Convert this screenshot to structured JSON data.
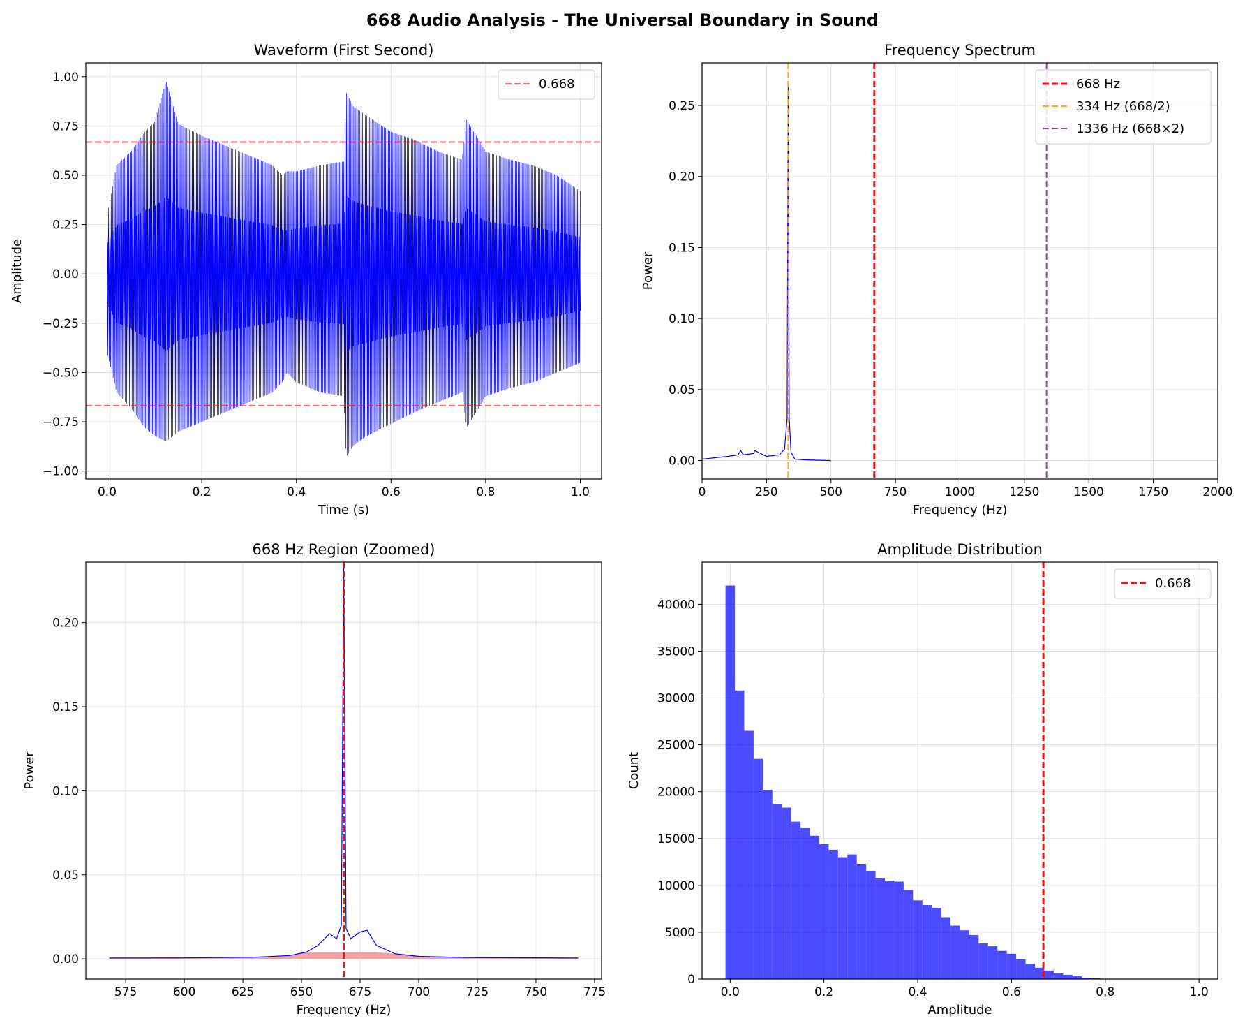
{
  "suptitle": "668 Audio Analysis - The Universal Boundary in Sound",
  "colors": {
    "signal": "#0000ff",
    "red": "#ff0000",
    "orange": "#ffa500",
    "purple": "#9932aa",
    "fill": "#f4a3a3",
    "grid": "#e0e0e0"
  },
  "chart_data": [
    {
      "type": "line",
      "title": "Waveform (First Second)",
      "xlabel": "Time (s)",
      "ylabel": "Amplitude",
      "xlim": [
        -0.045,
        1.045
      ],
      "ylim": [
        -1.04,
        1.07
      ],
      "xticks": [
        0.0,
        0.2,
        0.4,
        0.6,
        0.8,
        1.0
      ],
      "xtick_labels": [
        "0.0",
        "0.2",
        "0.4",
        "0.6",
        "0.8",
        "1.0"
      ],
      "yticks": [
        -1.0,
        -0.75,
        -0.5,
        -0.25,
        0.0,
        0.25,
        0.5,
        0.75,
        1.0
      ],
      "ytick_labels": [
        "−1.00",
        "−0.75",
        "−0.50",
        "−0.25",
        "0.00",
        "0.25",
        "0.50",
        "0.75",
        "1.00"
      ],
      "grid": true,
      "legend": {
        "placement": "top-right",
        "entries": [
          "0.668"
        ]
      },
      "series": [
        {
          "style": "oscillating waveform",
          "envelope_t": [
            0.0,
            0.02,
            0.05,
            0.08,
            0.1,
            0.125,
            0.15,
            0.2,
            0.25,
            0.3,
            0.35,
            0.37,
            0.38,
            0.4,
            0.45,
            0.5,
            0.505,
            0.52,
            0.55,
            0.6,
            0.65,
            0.7,
            0.75,
            0.76,
            0.8,
            0.85,
            0.9,
            0.95,
            1.0
          ],
          "envelope_top": [
            0.3,
            0.55,
            0.62,
            0.72,
            0.77,
            0.98,
            0.76,
            0.7,
            0.65,
            0.6,
            0.55,
            0.5,
            0.52,
            0.52,
            0.55,
            0.57,
            0.92,
            0.85,
            0.8,
            0.72,
            0.68,
            0.62,
            0.58,
            0.78,
            0.62,
            0.58,
            0.55,
            0.5,
            0.42
          ],
          "envelope_bottom": [
            -0.4,
            -0.6,
            -0.68,
            -0.78,
            -0.82,
            -0.85,
            -0.8,
            -0.75,
            -0.7,
            -0.65,
            -0.6,
            -0.55,
            -0.5,
            -0.55,
            -0.6,
            -0.62,
            -0.93,
            -0.87,
            -0.82,
            -0.76,
            -0.7,
            -0.65,
            -0.6,
            -0.78,
            -0.62,
            -0.58,
            -0.55,
            -0.5,
            -0.45
          ]
        }
      ],
      "reference_lines": [
        {
          "axis": "y",
          "value": 0.668,
          "color": "red",
          "style": "dashed",
          "label": "0.668"
        },
        {
          "axis": "y",
          "value": -0.668,
          "color": "red",
          "style": "dashed"
        }
      ]
    },
    {
      "type": "line",
      "title": "Frequency Spectrum",
      "xlabel": "Frequency (Hz)",
      "ylabel": "Power",
      "xlim": [
        0,
        2000
      ],
      "ylim": [
        -0.013,
        0.28
      ],
      "xticks": [
        0,
        250,
        500,
        750,
        1000,
        1250,
        1500,
        1750,
        2000
      ],
      "xtick_labels": [
        "0",
        "250",
        "500",
        "750",
        "1000",
        "1250",
        "1500",
        "1750",
        "2000"
      ],
      "yticks": [
        0.0,
        0.05,
        0.1,
        0.15,
        0.2,
        0.25
      ],
      "ytick_labels": [
        "0.00",
        "0.05",
        "0.10",
        "0.15",
        "0.20",
        "0.25"
      ],
      "grid": true,
      "legend": {
        "placement": "top-right",
        "entries": [
          "668 Hz",
          "334 Hz (668/2)",
          "1336 Hz (668×2)"
        ]
      },
      "series": [
        {
          "x": [
            0,
            50,
            100,
            140,
            150,
            160,
            200,
            205,
            250,
            300,
            320,
            330,
            334,
            338,
            345,
            360,
            400,
            500
          ],
          "y": [
            0.001,
            0.002,
            0.003,
            0.004,
            0.007,
            0.004,
            0.005,
            0.007,
            0.003,
            0.004,
            0.008,
            0.03,
            0.266,
            0.03,
            0.006,
            0.001,
            0.0005,
            0.0
          ]
        }
      ],
      "reference_lines": [
        {
          "axis": "x",
          "value": 668,
          "color": "red",
          "style": "dashed",
          "label": "668 Hz"
        },
        {
          "axis": "x",
          "value": 334,
          "color": "orange",
          "style": "dashed",
          "label": "334 Hz (668/2)"
        },
        {
          "axis": "x",
          "value": 1336,
          "color": "purple",
          "style": "dashed",
          "label": "1336 Hz (668×2)"
        }
      ]
    },
    {
      "type": "line",
      "title": "668 Hz Region (Zoomed)",
      "xlabel": "Frequency (Hz)",
      "ylabel": "Power",
      "xlim": [
        558,
        778
      ],
      "ylim": [
        -0.012,
        0.236
      ],
      "xticks": [
        575,
        600,
        625,
        650,
        675,
        700,
        725,
        750,
        775
      ],
      "xtick_labels": [
        "575",
        "600",
        "625",
        "650",
        "675",
        "700",
        "725",
        "750",
        "775"
      ],
      "yticks": [
        0.0,
        0.05,
        0.1,
        0.15,
        0.2
      ],
      "ytick_labels": [
        "0.00",
        "0.05",
        "0.10",
        "0.15",
        "0.20"
      ],
      "grid": true,
      "legend": null,
      "series": [
        {
          "x": [
            568,
            600,
            630,
            645,
            652,
            657,
            662,
            665,
            667,
            668,
            669,
            671,
            675,
            678,
            682,
            690,
            700,
            720,
            768
          ],
          "y": [
            0.0005,
            0.0006,
            0.001,
            0.002,
            0.004,
            0.008,
            0.015,
            0.012,
            0.02,
            0.233,
            0.018,
            0.012,
            0.016,
            0.017,
            0.008,
            0.003,
            0.0015,
            0.0008,
            0.0005
          ]
        }
      ],
      "reference_lines": [
        {
          "axis": "x",
          "value": 668,
          "color": "red",
          "style": "dashed"
        }
      ]
    },
    {
      "type": "bar",
      "title": "Amplitude Distribution",
      "xlabel": "Amplitude",
      "ylabel": "Count",
      "xlim": [
        -0.06,
        1.04
      ],
      "ylim": [
        0,
        44500
      ],
      "xticks": [
        0.0,
        0.2,
        0.4,
        0.6,
        0.8,
        1.0
      ],
      "xtick_labels": [
        "0.0",
        "0.2",
        "0.4",
        "0.6",
        "0.8",
        "1.0"
      ],
      "yticks": [
        0,
        5000,
        10000,
        15000,
        20000,
        25000,
        30000,
        35000,
        40000
      ],
      "ytick_labels": [
        "0",
        "5000",
        "10000",
        "15000",
        "20000",
        "25000",
        "30000",
        "35000",
        "40000"
      ],
      "grid": true,
      "legend": {
        "placement": "top-right",
        "entries": [
          "0.668"
        ]
      },
      "bin_start": -0.01,
      "bin_width": 0.02,
      "values": [
        42000,
        30800,
        26500,
        23500,
        20200,
        18700,
        18300,
        16800,
        16100,
        15300,
        14400,
        13800,
        13000,
        13300,
        12300,
        11500,
        10800,
        10500,
        10400,
        9500,
        8400,
        7900,
        7600,
        6600,
        5700,
        5200,
        4700,
        3800,
        3500,
        3000,
        2700,
        2100,
        1600,
        1200,
        900,
        600,
        450,
        300,
        150,
        80,
        40,
        15,
        5,
        2,
        1,
        0,
        0,
        0,
        0,
        0
      ],
      "reference_lines": [
        {
          "axis": "x",
          "value": 0.668,
          "color": "red",
          "style": "dashed",
          "label": "0.668"
        }
      ]
    }
  ]
}
